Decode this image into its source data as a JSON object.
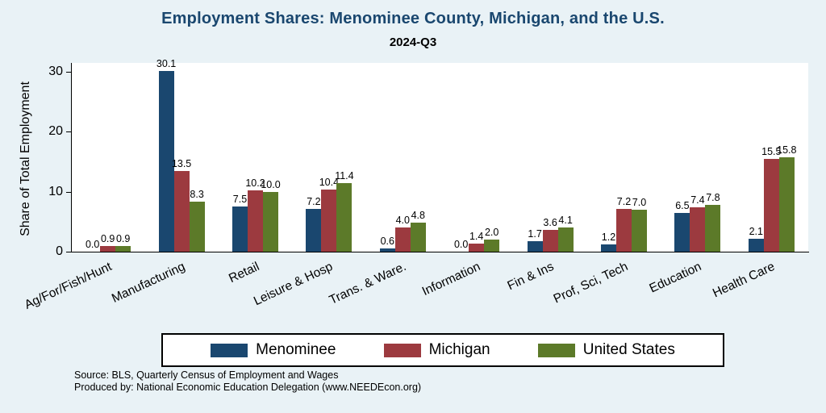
{
  "chart_data": {
    "type": "bar",
    "title": "Employment Shares: Menominee County, Michigan, and the U.S.",
    "subtitle": "2024-Q3",
    "ylabel": "Share of Total Employment",
    "categories": [
      "Ag/For/Fish/Hunt",
      "Manufacturing",
      "Retail",
      "Leisure & Hosp",
      "Trans. & Ware.",
      "Information",
      "Fin & Ins",
      "Prof, Sci, Tech",
      "Education",
      "Health Care"
    ],
    "series": [
      {
        "name": "Menominee",
        "color": "#1a476f",
        "values": [
          0.0,
          30.1,
          7.5,
          7.2,
          0.6,
          0.0,
          1.7,
          1.2,
          6.5,
          2.1
        ]
      },
      {
        "name": "Michigan",
        "color": "#9c3a3f",
        "values": [
          0.9,
          13.5,
          10.2,
          10.4,
          4.0,
          1.4,
          3.6,
          7.2,
          7.4,
          15.5
        ]
      },
      {
        "name": "United States",
        "color": "#5c7a29",
        "values": [
          0.9,
          8.3,
          10.0,
          11.4,
          4.8,
          2.0,
          4.1,
          7.0,
          7.8,
          15.8
        ]
      }
    ],
    "yticks": [
      0,
      10,
      20,
      30
    ],
    "ylim": [
      0,
      31.5
    ],
    "grid": false,
    "value_labels": true,
    "legend_position": "bottom",
    "background_color": "#e9f2f6",
    "plot_background_color": "#ffffff"
  },
  "notes": {
    "line1": "Source: BLS, Quarterly Census of Employment and Wages",
    "line2": "Produced by: National Economic Education Delegation (www.NEEDEcon.org)"
  }
}
